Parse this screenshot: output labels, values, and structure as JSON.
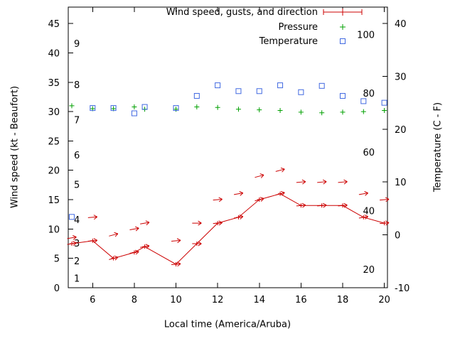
{
  "chart_data": {
    "type": "line",
    "axes": {
      "x": {
        "label": "Local time (America/Aruba)",
        "min": 4.83,
        "max": 20.15,
        "ticks": [
          6,
          8,
          10,
          12,
          14,
          16,
          18,
          20
        ]
      },
      "y_left": {
        "label": "Wind speed (kt - Beaufort)",
        "min": 0,
        "max": 47.8,
        "ticks": [
          0,
          5,
          10,
          15,
          20,
          25,
          30,
          35,
          40,
          45
        ],
        "beaufort_labels": [
          {
            "beaufort": "1",
            "kt": 1.5
          },
          {
            "beaufort": "2",
            "kt": 4.5
          },
          {
            "beaufort": "3",
            "kt": 7.5
          },
          {
            "beaufort": "4",
            "kt": 11.5
          },
          {
            "beaufort": "5",
            "kt": 17.5
          },
          {
            "beaufort": "6",
            "kt": 22.5
          },
          {
            "beaufort": "7",
            "kt": 28.5
          },
          {
            "beaufort": "8",
            "kt": 34.5
          },
          {
            "beaufort": "9",
            "kt": 41.5
          }
        ]
      },
      "y_right": {
        "label": "Temperature (C - F)",
        "min": -10,
        "max": 43.1,
        "ticks": [
          -10,
          0,
          10,
          20,
          30,
          40
        ],
        "fahrenheit_labels": [
          20,
          40,
          60,
          80,
          100
        ]
      }
    },
    "legend": {
      "position": "top-right-inside",
      "entries": [
        {
          "label": "Wind speed, gusts, and direction",
          "marker": "line-plus",
          "color": "#cc0000"
        },
        {
          "label": "Pressure",
          "marker": "plus",
          "color": "#00a000"
        },
        {
          "label": "Temperature",
          "marker": "square",
          "color": "#4169e1"
        }
      ]
    },
    "series": {
      "wind_speed_kt": {
        "name": "Wind speed",
        "color": "#cc0000",
        "points": [
          {
            "x": 5,
            "kt": 7.5,
            "dir_from_deg": 80
          },
          {
            "x": 6,
            "kt": 8,
            "dir_from_deg": 85
          },
          {
            "x": 7,
            "kt": 5,
            "dir_from_deg": 75
          },
          {
            "x": 8,
            "kt": 6,
            "dir_from_deg": 80
          },
          {
            "x": 8.5,
            "kt": 7,
            "dir_from_deg": 80
          },
          {
            "x": 10,
            "kt": 4,
            "dir_from_deg": 85
          },
          {
            "x": 11,
            "kt": 7.5,
            "dir_from_deg": 90
          },
          {
            "x": 12,
            "kt": 11,
            "dir_from_deg": 85
          },
          {
            "x": 13,
            "kt": 12,
            "dir_from_deg": 80
          },
          {
            "x": 14,
            "kt": 15,
            "dir_from_deg": 75
          },
          {
            "x": 15,
            "kt": 16,
            "dir_from_deg": 75
          },
          {
            "x": 16,
            "kt": 14,
            "dir_from_deg": 85
          },
          {
            "x": 17,
            "kt": 14,
            "dir_from_deg": 85
          },
          {
            "x": 18,
            "kt": 14,
            "dir_from_deg": 85
          },
          {
            "x": 19,
            "kt": 12,
            "dir_from_deg": 80
          },
          {
            "x": 20,
            "kt": 11,
            "dir_from_deg": 85
          }
        ]
      },
      "wind_gusts_kt": {
        "name": "Wind gusts",
        "color": "#cc0000",
        "points": [
          {
            "x": 5,
            "kt": 8.5,
            "dir_from_deg": 80
          },
          {
            "x": 6,
            "kt": 12,
            "dir_from_deg": 85
          },
          {
            "x": 7,
            "kt": 9,
            "dir_from_deg": 75
          },
          {
            "x": 8,
            "kt": 10,
            "dir_from_deg": 80
          },
          {
            "x": 8.5,
            "kt": 11,
            "dir_from_deg": 80
          },
          {
            "x": 10,
            "kt": 8,
            "dir_from_deg": 85
          },
          {
            "x": 11,
            "kt": 11,
            "dir_from_deg": 90
          },
          {
            "x": 12,
            "kt": 15,
            "dir_from_deg": 85
          },
          {
            "x": 13,
            "kt": 16,
            "dir_from_deg": 80
          },
          {
            "x": 14,
            "kt": 19,
            "dir_from_deg": 75
          },
          {
            "x": 15,
            "kt": 20,
            "dir_from_deg": 75
          },
          {
            "x": 16,
            "kt": 18,
            "dir_from_deg": 85
          },
          {
            "x": 17,
            "kt": 18,
            "dir_from_deg": 85
          },
          {
            "x": 18,
            "kt": 18,
            "dir_from_deg": 85
          },
          {
            "x": 19,
            "kt": 16,
            "dir_from_deg": 80
          },
          {
            "x": 20,
            "kt": 15,
            "dir_from_deg": 85
          }
        ]
      },
      "pressure_inhg": {
        "name": "Pressure",
        "color": "#00a000",
        "points": [
          {
            "x": 5,
            "v": 31.0
          },
          {
            "x": 6,
            "v": 30.5
          },
          {
            "x": 7,
            "v": 30.5
          },
          {
            "x": 8,
            "v": 30.8
          },
          {
            "x": 8.5,
            "v": 30.4
          },
          {
            "x": 10,
            "v": 30.4
          },
          {
            "x": 11,
            "v": 30.8
          },
          {
            "x": 12,
            "v": 30.7
          },
          {
            "x": 13,
            "v": 30.4
          },
          {
            "x": 14,
            "v": 30.3
          },
          {
            "x": 15,
            "v": 30.2
          },
          {
            "x": 16,
            "v": 29.9
          },
          {
            "x": 17,
            "v": 29.8
          },
          {
            "x": 18,
            "v": 29.9
          },
          {
            "x": 19,
            "v": 30.0
          },
          {
            "x": 20,
            "v": 30.2
          }
        ]
      },
      "temperature_c": {
        "name": "Temperature",
        "color": "#4169e1",
        "points": [
          {
            "x": 5,
            "c": 3.4
          },
          {
            "x": 6,
            "c": 24.0
          },
          {
            "x": 7,
            "c": 24.0
          },
          {
            "x": 8,
            "c": 23.0
          },
          {
            "x": 8.5,
            "c": 24.2
          },
          {
            "x": 10,
            "c": 24.0
          },
          {
            "x": 11,
            "c": 26.3
          },
          {
            "x": 12,
            "c": 28.3
          },
          {
            "x": 13,
            "c": 27.2
          },
          {
            "x": 14,
            "c": 27.2
          },
          {
            "x": 15,
            "c": 28.3
          },
          {
            "x": 16,
            "c": 27.0
          },
          {
            "x": 17,
            "c": 28.2
          },
          {
            "x": 18,
            "c": 26.3
          },
          {
            "x": 19,
            "c": 25.3
          },
          {
            "x": 20,
            "c": 25.0
          }
        ]
      }
    }
  }
}
